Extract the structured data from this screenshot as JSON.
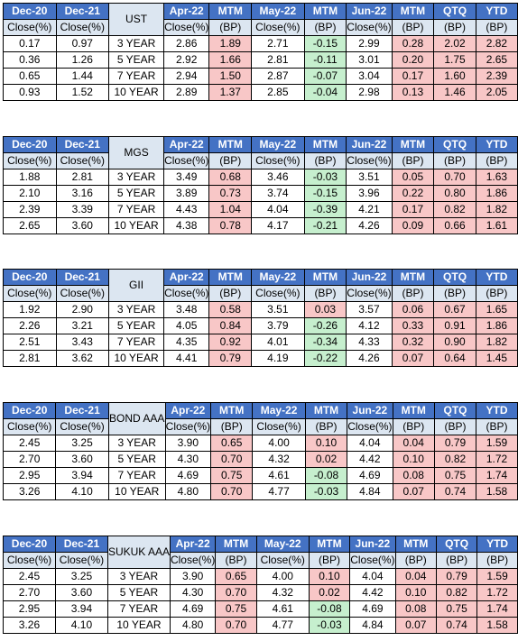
{
  "headers": [
    "Dec-20",
    "Dec-21",
    "Apr-22",
    "MTM",
    "May-22",
    "MTM",
    "Jun-22",
    "MTM",
    "QTQ",
    "YTD"
  ],
  "subheaders": [
    "Close(%)",
    "Close(%)",
    "Close(%)",
    "(BP)",
    "Close(%)",
    "(BP)",
    "Close(%)",
    "(BP)",
    "(BP)",
    "(BP)"
  ],
  "tables": [
    {
      "label": "UST",
      "rows": [
        {
          "tenor": "3 YEAR",
          "v": [
            "0.17",
            "0.97",
            "2.86",
            "1.89",
            "2.71",
            "-0.15",
            "2.99",
            "0.28",
            "2.02",
            "2.82"
          ]
        },
        {
          "tenor": "5 YEAR",
          "v": [
            "0.36",
            "1.26",
            "2.92",
            "1.66",
            "2.81",
            "-0.11",
            "3.01",
            "0.20",
            "1.75",
            "2.65"
          ]
        },
        {
          "tenor": "7 YEAR",
          "v": [
            "0.65",
            "1.44",
            "2.94",
            "1.50",
            "2.87",
            "-0.07",
            "3.04",
            "0.17",
            "1.60",
            "2.39"
          ]
        },
        {
          "tenor": "10 YEAR",
          "v": [
            "0.93",
            "1.52",
            "2.89",
            "1.37",
            "2.85",
            "-0.04",
            "2.98",
            "0.13",
            "1.46",
            "2.05"
          ]
        }
      ]
    },
    {
      "label": "MGS",
      "rows": [
        {
          "tenor": "3 YEAR",
          "v": [
            "1.88",
            "2.81",
            "3.49",
            "0.68",
            "3.46",
            "-0.03",
            "3.51",
            "0.05",
            "0.70",
            "1.63"
          ]
        },
        {
          "tenor": "5 YEAR",
          "v": [
            "2.10",
            "3.16",
            "3.89",
            "0.73",
            "3.74",
            "-0.15",
            "3.96",
            "0.22",
            "0.80",
            "1.86"
          ]
        },
        {
          "tenor": "7 YEAR",
          "v": [
            "2.39",
            "3.39",
            "4.43",
            "1.04",
            "4.04",
            "-0.39",
            "4.21",
            "0.17",
            "0.82",
            "1.82"
          ]
        },
        {
          "tenor": "10 YEAR",
          "v": [
            "2.65",
            "3.60",
            "4.38",
            "0.78",
            "4.17",
            "-0.21",
            "4.26",
            "0.09",
            "0.66",
            "1.61"
          ]
        }
      ]
    },
    {
      "label": "GII",
      "rows": [
        {
          "tenor": "3 YEAR",
          "v": [
            "1.92",
            "2.90",
            "3.48",
            "0.58",
            "3.51",
            "0.03",
            "3.57",
            "0.06",
            "0.67",
            "1.65"
          ]
        },
        {
          "tenor": "5 YEAR",
          "v": [
            "2.26",
            "3.21",
            "4.05",
            "0.84",
            "3.79",
            "-0.26",
            "4.12",
            "0.33",
            "0.91",
            "1.86"
          ]
        },
        {
          "tenor": "7 YEAR",
          "v": [
            "2.51",
            "3.43",
            "4.35",
            "0.92",
            "4.01",
            "-0.34",
            "4.33",
            "0.32",
            "0.90",
            "1.82"
          ]
        },
        {
          "tenor": "10 YEAR",
          "v": [
            "2.81",
            "3.62",
            "4.41",
            "0.79",
            "4.19",
            "-0.22",
            "4.26",
            "0.07",
            "0.64",
            "1.45"
          ]
        }
      ]
    },
    {
      "label": "BOND AAA",
      "rows": [
        {
          "tenor": "3 YEAR",
          "v": [
            "2.45",
            "3.25",
            "3.90",
            "0.65",
            "4.00",
            "0.10",
            "4.04",
            "0.04",
            "0.79",
            "1.59"
          ]
        },
        {
          "tenor": "5 YEAR",
          "v": [
            "2.70",
            "3.60",
            "4.30",
            "0.70",
            "4.32",
            "0.02",
            "4.42",
            "0.10",
            "0.82",
            "1.72"
          ]
        },
        {
          "tenor": "7 YEAR",
          "v": [
            "2.95",
            "3.94",
            "4.69",
            "0.75",
            "4.61",
            "-0.08",
            "4.69",
            "0.08",
            "0.75",
            "1.74"
          ]
        },
        {
          "tenor": "10 YEAR",
          "v": [
            "3.26",
            "4.10",
            "4.80",
            "0.70",
            "4.77",
            "-0.03",
            "4.84",
            "0.07",
            "0.74",
            "1.58"
          ]
        }
      ]
    },
    {
      "label": "SUKUK AAA",
      "rows": [
        {
          "tenor": "3 YEAR",
          "v": [
            "2.45",
            "3.25",
            "3.90",
            "0.65",
            "4.00",
            "0.10",
            "4.04",
            "0.04",
            "0.79",
            "1.59"
          ]
        },
        {
          "tenor": "5 YEAR",
          "v": [
            "2.70",
            "3.60",
            "4.30",
            "0.70",
            "4.32",
            "0.02",
            "4.42",
            "0.10",
            "0.82",
            "1.72"
          ]
        },
        {
          "tenor": "7 YEAR",
          "v": [
            "2.95",
            "3.94",
            "4.69",
            "0.75",
            "4.61",
            "-0.08",
            "4.69",
            "0.08",
            "0.75",
            "1.74"
          ]
        },
        {
          "tenor": "10 YEAR",
          "v": [
            "3.26",
            "4.10",
            "4.80",
            "0.70",
            "4.77",
            "-0.03",
            "4.84",
            "0.07",
            "0.74",
            "1.58"
          ]
        }
      ]
    }
  ],
  "colors": {
    "header_bg": "#4472c4",
    "subheader_bg": "#dce6f1",
    "positive_bg": "#f8c7c7",
    "negative_bg": "#c6efce"
  }
}
